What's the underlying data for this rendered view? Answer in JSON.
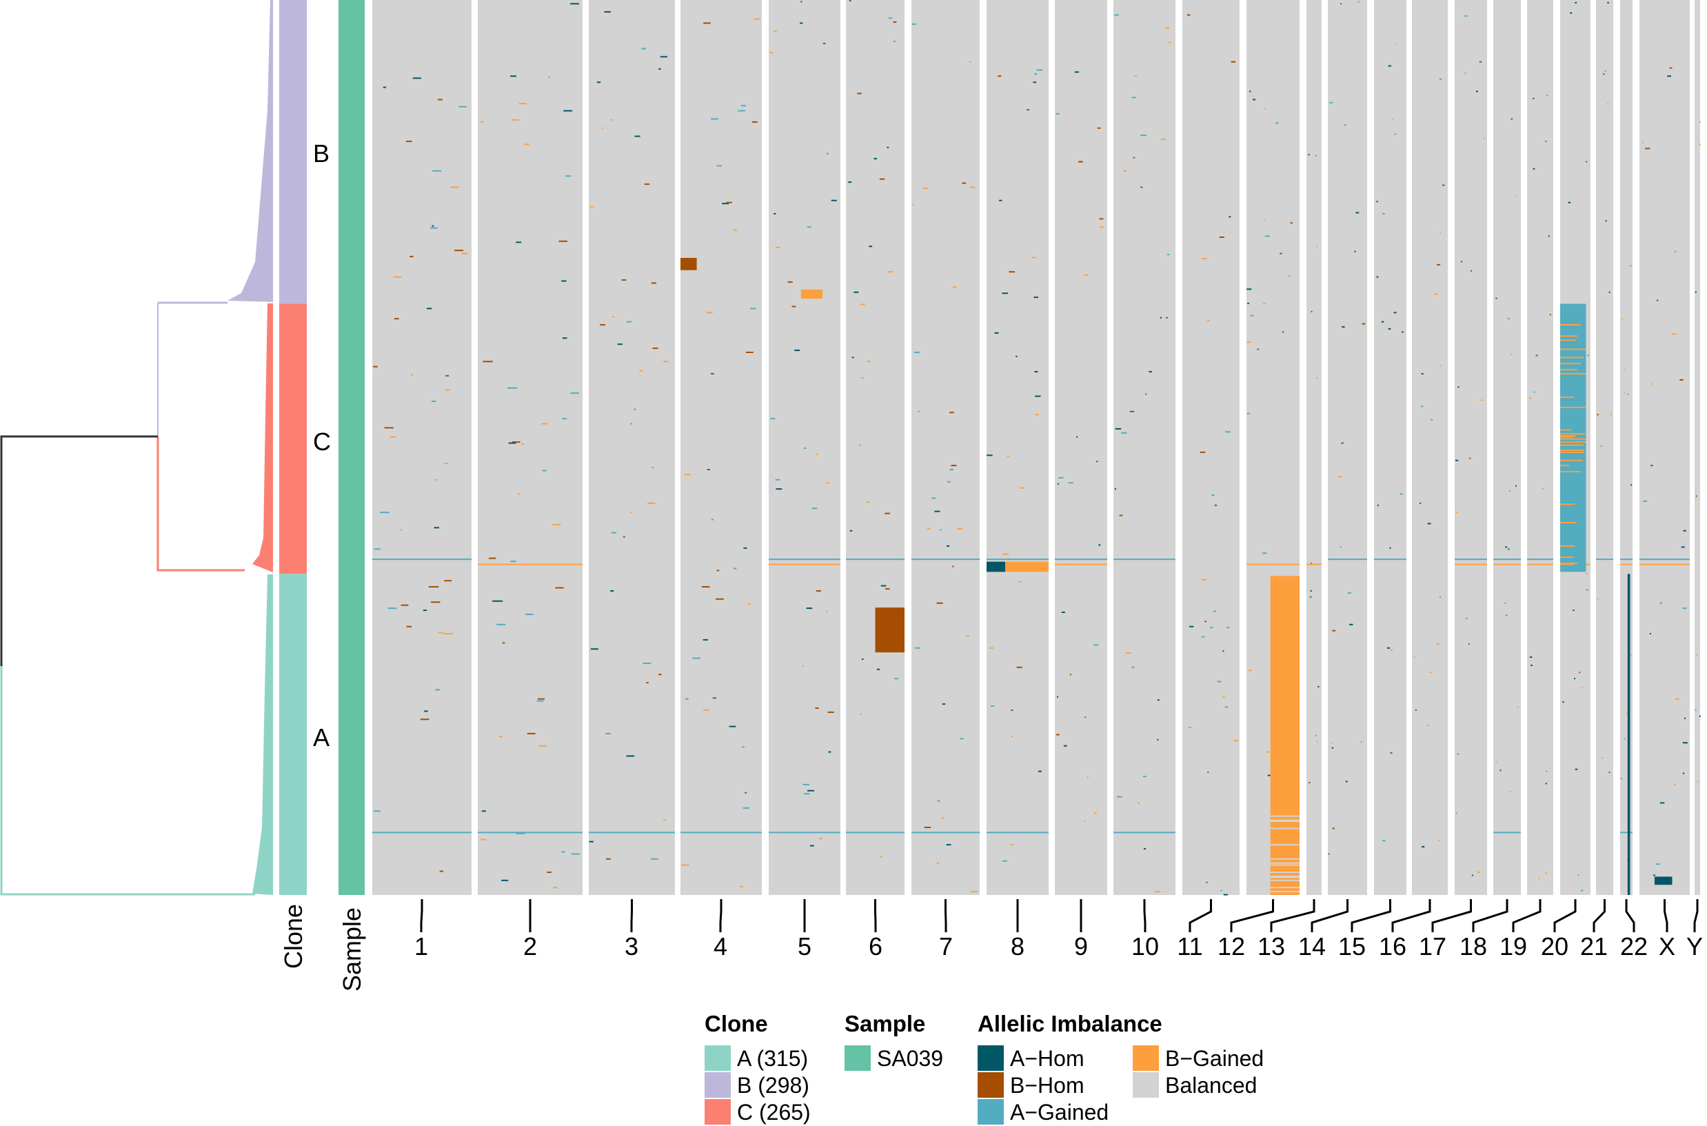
{
  "colors": {
    "A-Hom": "#025767",
    "B-Hom": "#A54D00",
    "A-Gained": "#53ACC0",
    "B-Gained": "#FE9F3E",
    "Balanced": "#D3D3D3",
    "clone_A": "#8ED4C6",
    "clone_B": "#BDB8DB",
    "clone_C": "#FB8072",
    "sample_SA039": "#66C2A5",
    "root": "#333333"
  },
  "chart_data": {
    "type": "heatmap",
    "title": "",
    "xlabel": "",
    "ylabel": "",
    "annotation_labels": {
      "clone": "Clone",
      "sample": "Sample"
    },
    "chromosomes": [
      "1",
      "2",
      "3",
      "4",
      "5",
      "6",
      "7",
      "8",
      "9",
      "10",
      "11",
      "12",
      "13",
      "14",
      "15",
      "16",
      "17",
      "18",
      "19",
      "20",
      "21",
      "22",
      "X",
      "Y"
    ],
    "clones": [
      {
        "label": "B",
        "cells": 298
      },
      {
        "label": "C",
        "cells": 265
      },
      {
        "label": "A",
        "cells": 315
      }
    ],
    "sample": "SA039",
    "states": [
      "A-Hom",
      "B-Hom",
      "A-Gained",
      "B-Gained",
      "Balanced"
    ],
    "notable_segments": [
      {
        "chr": "12",
        "state": "B-Gained",
        "cells": [
          565,
          878
        ],
        "span": [
          0.45,
          1.0
        ]
      },
      {
        "chr": "20",
        "state": "A-Gained",
        "cells": [
          298,
          561
        ],
        "span": [
          0.0,
          0.85
        ]
      },
      {
        "chr": "22",
        "state": "A-Hom",
        "cells": [
          563,
          878
        ],
        "span": [
          0.6,
          0.8
        ]
      },
      {
        "chr": "8",
        "state": "A-Hom",
        "cells": [
          551,
          561
        ],
        "span": [
          0.0,
          0.3
        ]
      },
      {
        "chr": "8",
        "state": "B-Gained",
        "cells": [
          551,
          561
        ],
        "span": [
          0.3,
          1.0
        ]
      },
      {
        "chr": "5",
        "state": "B-Gained",
        "cells": [
          284,
          293
        ],
        "span": [
          0.45,
          0.75
        ]
      },
      {
        "chr": "X",
        "state": "A-Hom",
        "cells": [
          860,
          868
        ],
        "span": [
          0.3,
          0.65
        ]
      },
      {
        "chr": "4",
        "state": "B-Hom",
        "cells": [
          253,
          265
        ],
        "span": [
          0.0,
          0.2
        ]
      },
      {
        "chr": "6",
        "state": "B-Hom",
        "cells": [
          596,
          640
        ],
        "span": [
          0.5,
          1.0
        ]
      }
    ]
  },
  "legend": {
    "clone_title": "Clone",
    "clone_items": [
      "A (315)",
      "B (298)",
      "C (265)"
    ],
    "sample_title": "Sample",
    "sample_items": [
      "SA039"
    ],
    "ai_title": "Allelic Imbalance",
    "ai_items": [
      "A−Hom",
      "B−Hom",
      "A−Gained",
      "B−Gained",
      "Balanced"
    ]
  }
}
